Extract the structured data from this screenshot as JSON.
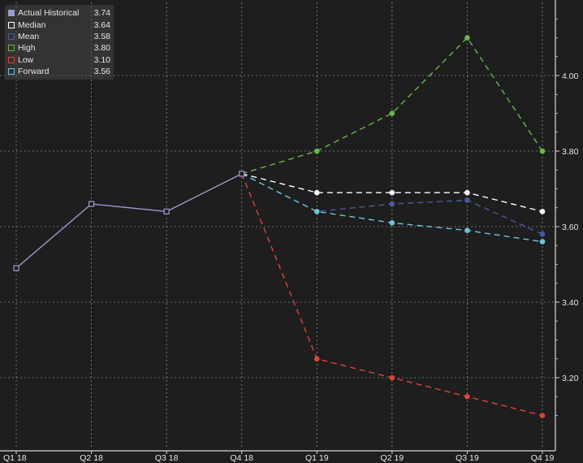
{
  "chart_data": {
    "type": "line",
    "categories": [
      "Q1 18",
      "Q2 18",
      "Q3 18",
      "Q4 18",
      "Q1 19",
      "Q2 19",
      "Q3 19",
      "Q4 19"
    ],
    "ylim": [
      3.05,
      4.2
    ],
    "yticks": [
      "3.20",
      "3.40",
      "3.60",
      "3.80",
      "4.00"
    ],
    "ytick_values": [
      3.2,
      3.4,
      3.6,
      3.8,
      4.0
    ],
    "grid": true,
    "legend_position": "top-left",
    "legend": [
      {
        "name": "Actual Historical",
        "value": "3.74",
        "color": "#9b9bcf",
        "fill": true
      },
      {
        "name": "Median",
        "value": "3.64",
        "color": "#ffffff",
        "fill": false
      },
      {
        "name": "Mean",
        "value": "3.58",
        "color": "#4a5a9a",
        "fill": false
      },
      {
        "name": "High",
        "value": "3.80",
        "color": "#6ab64a",
        "fill": false
      },
      {
        "name": "Low",
        "value": "3.10",
        "color": "#d9453a",
        "fill": false
      },
      {
        "name": "Forward",
        "value": "3.56",
        "color": "#6cc3d6",
        "fill": false
      }
    ],
    "series": [
      {
        "name": "Actual Historical",
        "color": "#9b9bcf",
        "style": "solid",
        "marker": "square",
        "values": [
          3.49,
          3.66,
          3.64,
          3.74,
          null,
          null,
          null,
          null
        ]
      },
      {
        "name": "Median",
        "color": "#ffffff",
        "style": "dashed",
        "marker": "circle",
        "values": [
          null,
          null,
          null,
          3.74,
          3.69,
          3.69,
          3.69,
          3.64
        ]
      },
      {
        "name": "Mean",
        "color": "#4a5a9a",
        "style": "dashed",
        "marker": "circle",
        "values": [
          null,
          null,
          null,
          3.74,
          3.64,
          3.66,
          3.67,
          3.58
        ]
      },
      {
        "name": "High",
        "color": "#6ab64a",
        "style": "dashed",
        "marker": "circle",
        "values": [
          null,
          null,
          null,
          3.74,
          3.8,
          3.9,
          4.1,
          3.8
        ]
      },
      {
        "name": "Low",
        "color": "#d9453a",
        "style": "dashed",
        "marker": "circle",
        "values": [
          null,
          null,
          null,
          3.74,
          3.25,
          3.2,
          3.15,
          3.1
        ]
      },
      {
        "name": "Forward",
        "color": "#6cc3d6",
        "style": "dashed",
        "marker": "circle",
        "values": [
          null,
          null,
          null,
          3.74,
          3.64,
          3.61,
          3.59,
          3.56
        ]
      }
    ]
  }
}
